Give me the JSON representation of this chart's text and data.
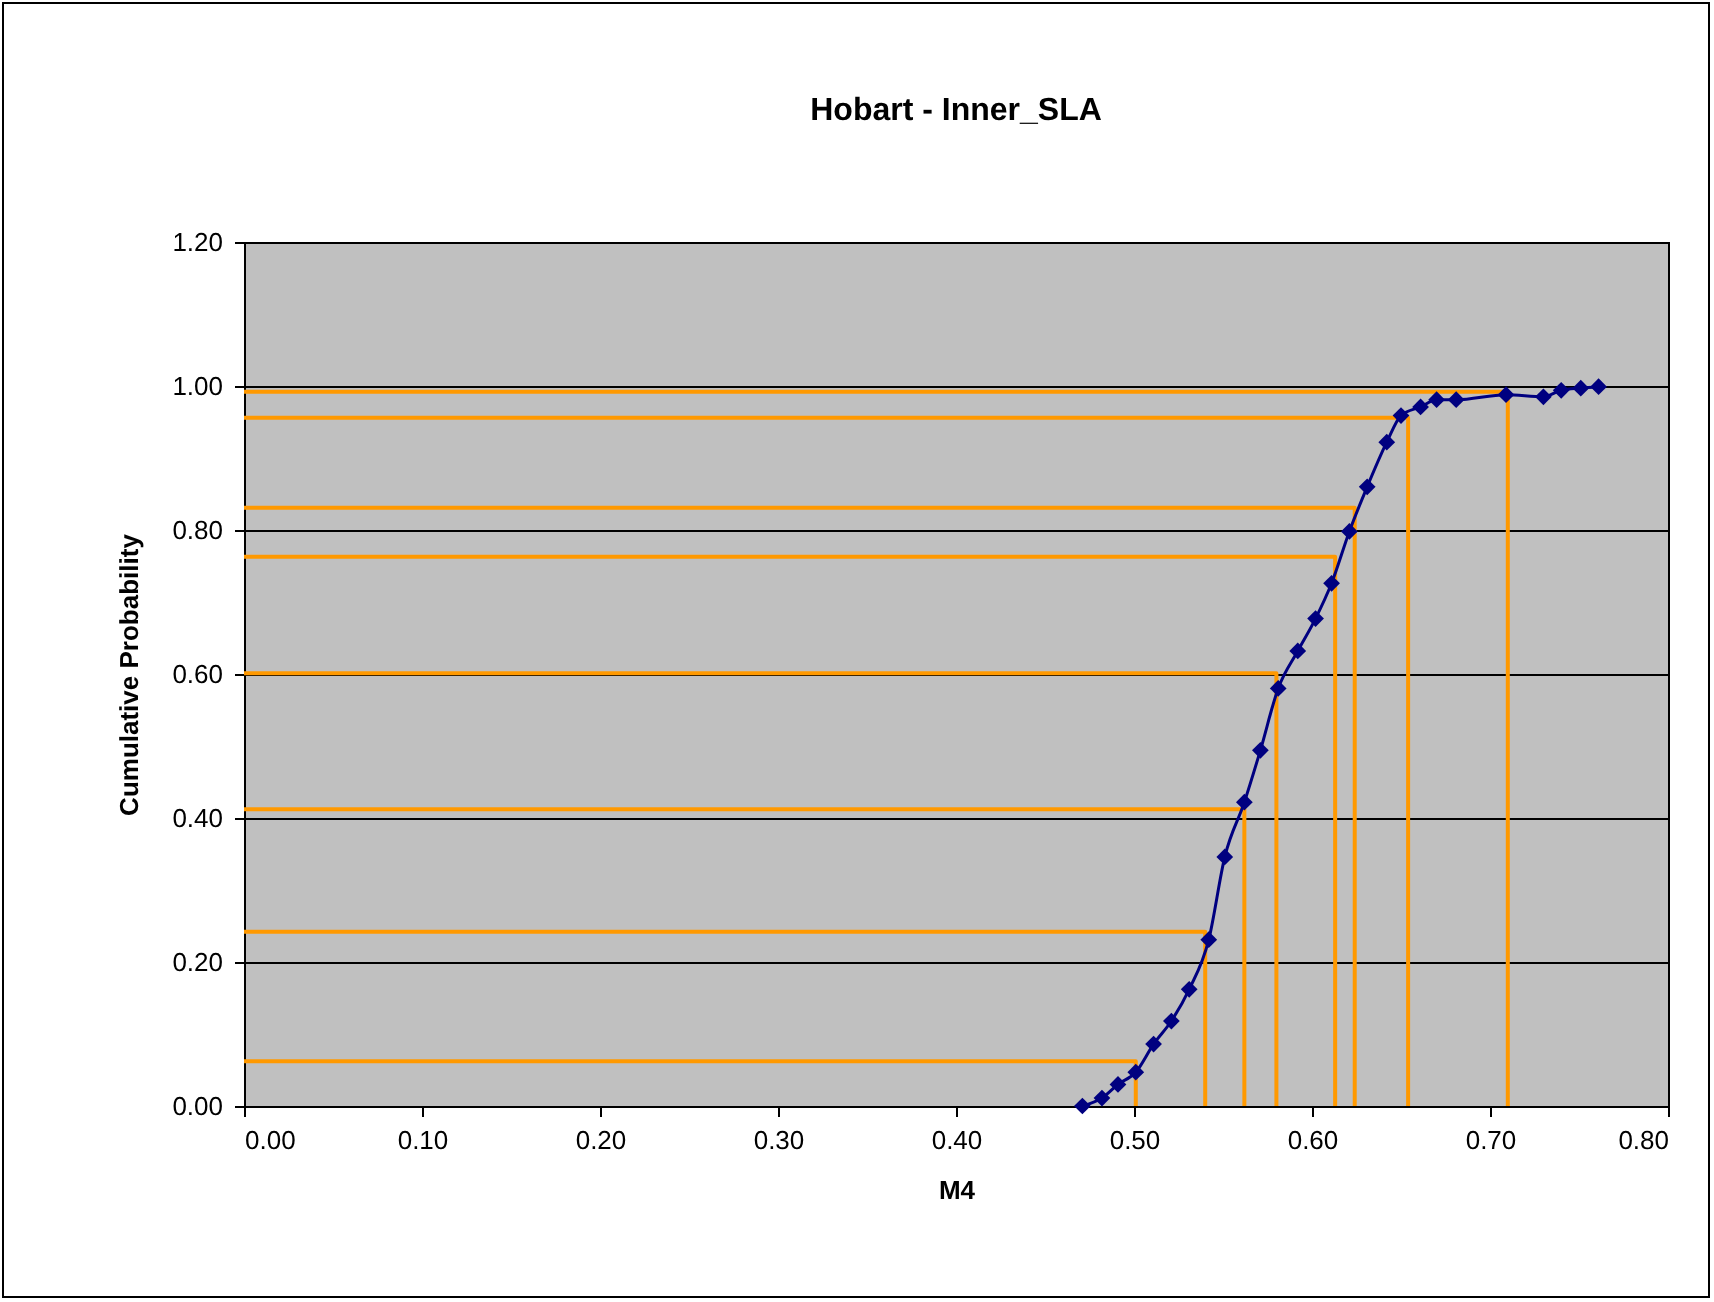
{
  "chart_data": {
    "type": "line",
    "title": "Hobart - Inner_SLA",
    "xlabel": "M4",
    "ylabel": "Cumulative Probability",
    "xlim": [
      0,
      0.8
    ],
    "ylim": [
      0,
      1.2
    ],
    "xticks": [
      {
        "value": 0,
        "label": "0.00"
      },
      {
        "value": 0.1,
        "label": "0.10"
      },
      {
        "value": 0.2,
        "label": "0.20"
      },
      {
        "value": 0.3,
        "label": "0.30"
      },
      {
        "value": 0.4,
        "label": "0.40"
      },
      {
        "value": 0.5,
        "label": "0.50"
      },
      {
        "value": 0.6,
        "label": "0.60"
      },
      {
        "value": 0.7,
        "label": "0.70"
      },
      {
        "value": 0.8,
        "label": "0.80"
      }
    ],
    "yticks": [
      {
        "value": 0,
        "label": "0.00"
      },
      {
        "value": 0.2,
        "label": "0.20"
      },
      {
        "value": 0.4,
        "label": "0.40"
      },
      {
        "value": 0.6,
        "label": "0.60"
      },
      {
        "value": 0.8,
        "label": "0.80"
      },
      {
        "value": 1,
        "label": "1.00"
      },
      {
        "value": 1.2,
        "label": "1.20"
      }
    ],
    "grid": "y",
    "marker": "diamond",
    "series": [
      {
        "color": "#ff9900",
        "marker": "none",
        "x": [
          0,
          0.501,
          0.501
        ],
        "values": [
          0.062,
          0.062,
          0
        ]
      },
      {
        "color": "#ff9900",
        "marker": "none",
        "x": [
          0,
          0.54,
          0.54
        ],
        "values": [
          0.242,
          0.242,
          0
        ]
      },
      {
        "color": "#ff9900",
        "marker": "none",
        "x": [
          0,
          0.562,
          0.562
        ],
        "values": [
          0.412,
          0.412,
          0
        ]
      },
      {
        "color": "#ff9900",
        "marker": "none",
        "x": [
          0,
          0.58,
          0.58
        ],
        "values": [
          0.601,
          0.601,
          0
        ]
      },
      {
        "color": "#ff9900",
        "marker": "none",
        "x": [
          0,
          0.613,
          0.613
        ],
        "values": [
          0.763,
          0.763,
          0
        ]
      },
      {
        "color": "#ff9900",
        "marker": "none",
        "x": [
          0,
          0.624,
          0.624
        ],
        "values": [
          0.831,
          0.831,
          0
        ]
      },
      {
        "color": "#ff9900",
        "marker": "none",
        "x": [
          0,
          0.654,
          0.654
        ],
        "values": [
          0.956,
          0.956,
          0
        ]
      },
      {
        "color": "#ff9900",
        "marker": "none",
        "x": [
          0,
          0.71,
          0.71
        ],
        "values": [
          0.992,
          0.992,
          0
        ]
      },
      {
        "color": "#000080",
        "x": [
          0.471,
          0.482,
          0.491,
          0.501,
          0.511,
          0.521,
          0.531,
          0.542,
          0.551,
          0.562,
          0.571,
          0.581,
          0.592,
          0.602,
          0.611,
          0.621,
          0.631,
          0.642,
          0.65,
          0.661,
          0.67,
          0.681,
          0.709,
          0.73,
          0.74,
          0.751,
          0.761
        ],
        "values": [
          0,
          0.011,
          0.03,
          0.047,
          0.086,
          0.118,
          0.162,
          0.231,
          0.346,
          0.422,
          0.494,
          0.58,
          0.632,
          0.677,
          0.726,
          0.798,
          0.86,
          0.922,
          0.959,
          0.971,
          0.981,
          0.981,
          0.988,
          0.985,
          0.994,
          0.997,
          0.999
        ]
      }
    ]
  }
}
